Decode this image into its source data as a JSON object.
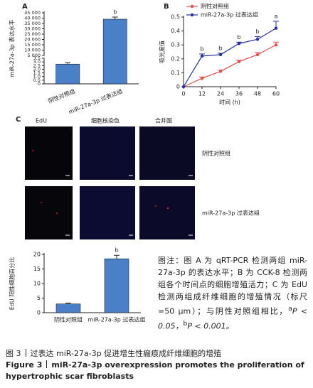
{
  "panels": [
    "A",
    "B",
    "C"
  ],
  "chart_data": [
    {
      "type": "bar",
      "ylabel": "miR-27a-3p 表达水平",
      "categories": [
        "阴性对照组",
        "miR-27a-3p 过表达组"
      ],
      "values": [
        2.7,
        39000
      ],
      "errors": [
        0.2,
        2000
      ],
      "annotations": [
        null,
        "b"
      ],
      "color": "#4a80c8",
      "ylim": [
        0,
        45000
      ],
      "ybreak": [
        3.5,
        5000
      ],
      "yticks": [
        0,
        0.5,
        {
          "value": 1,
          "label": "1.0"
        },
        1.5,
        {
          "value": 2,
          "label": "2.0"
        },
        2.5,
        {
          "value": 3,
          "label": "3.0"
        },
        3.5,
        {
          "value": 5000,
          "label": "5 000"
        },
        {
          "value": 10000,
          "label": "10 000"
        },
        {
          "value": 15000,
          "label": "15 000"
        },
        {
          "value": 20000,
          "label": "20 000"
        },
        {
          "value": 25000,
          "label": "25 000"
        },
        {
          "value": 30000,
          "label": "30 000"
        },
        {
          "value": 35000,
          "label": "35 000"
        },
        {
          "value": 40000,
          "label": "40 000"
        },
        {
          "value": 45000,
          "label": "45 000"
        }
      ]
    },
    {
      "type": "line",
      "xlabel": "时间 (h)",
      "ylabel": "吸光度值",
      "x": [
        0,
        12,
        24,
        36,
        48,
        60
      ],
      "xlim": [
        0,
        60
      ],
      "xticks": [
        0,
        12,
        24,
        36,
        48,
        60
      ],
      "ylim": [
        0,
        0.5
      ],
      "yticks": [
        0,
        0.1,
        0.2,
        0.3,
        0.4,
        0.5
      ],
      "series": [
        {
          "name": "阴性对照组",
          "color": "#e0504a",
          "values": [
            0,
            0.06,
            0.11,
            0.18,
            0.23,
            0.3
          ],
          "errors": [
            0,
            0.01,
            0.01,
            0.01,
            0.015,
            0.02
          ],
          "annotations": [
            null,
            null,
            null,
            null,
            null,
            null
          ]
        },
        {
          "name": "miR-27a-3p 过表达组",
          "color": "#27309a",
          "values": [
            0,
            0.22,
            0.23,
            0.31,
            0.34,
            0.42
          ],
          "errors": [
            0,
            0.015,
            0.01,
            0.01,
            0.02,
            0.05
          ],
          "annotations": [
            null,
            "b",
            "b",
            "b",
            "b",
            "a"
          ]
        }
      ]
    },
    {
      "type": "bar",
      "ylabel": "EdU 阳性细胞百分比",
      "categories": [
        "阴性对照组",
        "miR-27a-3p 过表达组"
      ],
      "values": [
        3,
        18.5
      ],
      "errors": [
        0.3,
        1.2
      ],
      "annotations": [
        null,
        "b"
      ],
      "color": "#4a80c8",
      "ylim": [
        0,
        20
      ],
      "yticks": [
        0,
        5,
        10,
        15,
        20
      ]
    }
  ],
  "micrograph": {
    "columns": [
      "EdU",
      "细胞核染色",
      "合并图"
    ],
    "rows": [
      "阴性对照组",
      "miR-27a-3p 过表达组"
    ]
  },
  "note": {
    "text": "图注：图 A 为 qRT-PCR 检测两组 miR-27a-3p 的表达水平；B 为 CCK-8 检测两组各个时间点的细胞增殖活力；C 为 EdU 检测两组成纤维细胞的增殖情况（标尺 =50 μm）；与阴性对照组相比，",
    "sig": [
      {
        "mark": "a",
        "text": "P < 0.05，"
      },
      {
        "mark": "b",
        "text": "P < 0.001。"
      }
    ]
  },
  "caption": {
    "zh_label": "图 3",
    "zh": "过表达 miR-27a-3p 促进增生性瘢痕成纤维细胞的增殖",
    "en_label": "Figure 3",
    "en": "miR-27a-3p overexpression promotes the proliferation of hypertrophic scar fibroblasts"
  }
}
